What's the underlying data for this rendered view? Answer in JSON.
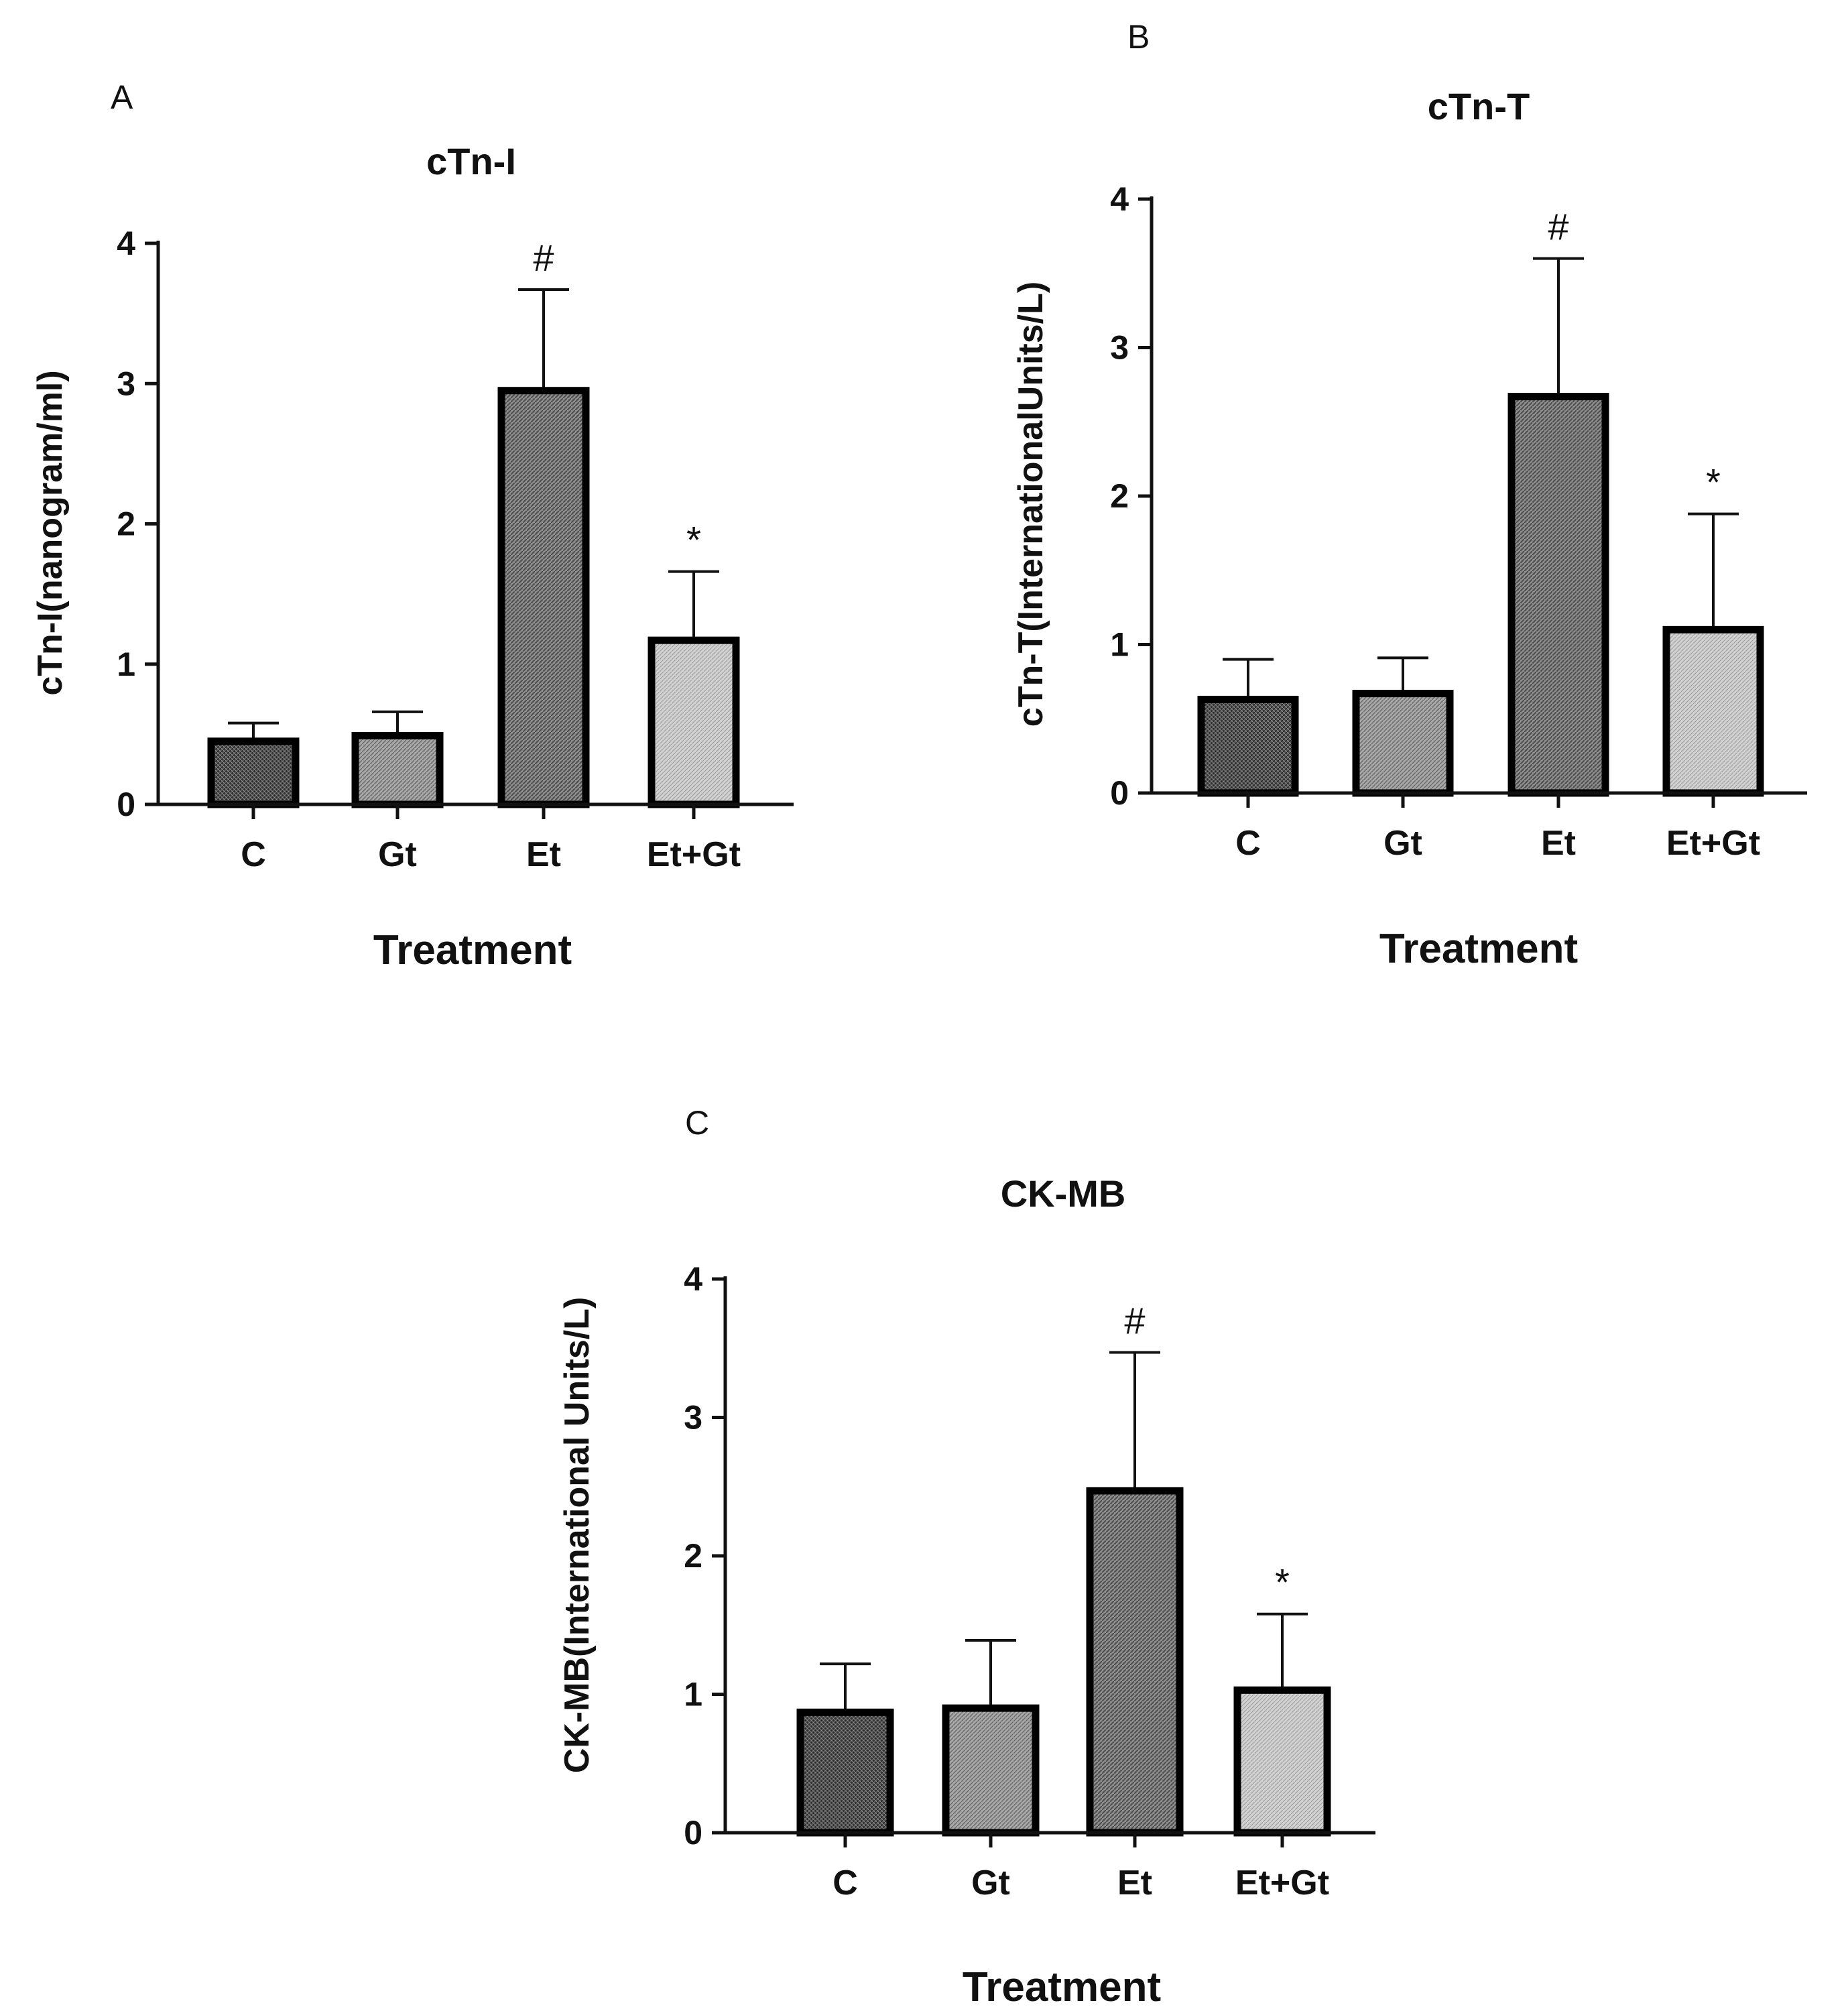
{
  "figure": {
    "background": "#ffffff",
    "bar_fill_patterns": [
      "dense-dark",
      "medium",
      "medium-dark",
      "light"
    ],
    "pattern_colors": {
      "dense-dark": "#555555",
      "medium": "#9a9a9a",
      "medium-dark": "#7a7a7a",
      "light": "#c4c4c4"
    }
  },
  "chart_data": [
    {
      "panel": "A",
      "type": "bar",
      "title": "cTn-I",
      "xlabel": "Treatment",
      "ylabel": "cTn-I(nanogram/ml)",
      "categories": [
        "C",
        "Gt",
        "Et",
        "Et+Gt"
      ],
      "values": [
        0.45,
        0.49,
        2.95,
        1.17
      ],
      "errors": [
        0.13,
        0.17,
        0.72,
        0.49
      ],
      "annotations": [
        "",
        "",
        "#",
        "*"
      ],
      "ylim": [
        0,
        4
      ],
      "yticks": [
        "0",
        "1",
        "2",
        "3",
        "4"
      ]
    },
    {
      "panel": "B",
      "type": "bar",
      "title": "cTn-T",
      "xlabel": "Treatment",
      "ylabel": "cTn-T(InternationalUnits/L)",
      "categories": [
        "C",
        "Gt",
        "Et",
        "Et+Gt"
      ],
      "values": [
        0.63,
        0.67,
        2.67,
        1.1
      ],
      "errors": [
        0.27,
        0.24,
        0.93,
        0.78
      ],
      "annotations": [
        "",
        "",
        "#",
        "*"
      ],
      "ylim": [
        0,
        4
      ],
      "yticks": [
        "0",
        "1",
        "2",
        "3",
        "4"
      ]
    },
    {
      "panel": "C",
      "type": "bar",
      "title": "CK-MB",
      "xlabel": "Treatment",
      "ylabel": "CK-MB(International Units/L)",
      "categories": [
        "C",
        "Gt",
        "Et",
        "Et+Gt"
      ],
      "values": [
        0.87,
        0.9,
        2.47,
        1.03
      ],
      "errors": [
        0.35,
        0.49,
        1.0,
        0.55
      ],
      "annotations": [
        "",
        "",
        "#",
        "*"
      ],
      "ylim": [
        0,
        4
      ],
      "yticks": [
        "0",
        "1",
        "2",
        "3",
        "4"
      ]
    }
  ]
}
